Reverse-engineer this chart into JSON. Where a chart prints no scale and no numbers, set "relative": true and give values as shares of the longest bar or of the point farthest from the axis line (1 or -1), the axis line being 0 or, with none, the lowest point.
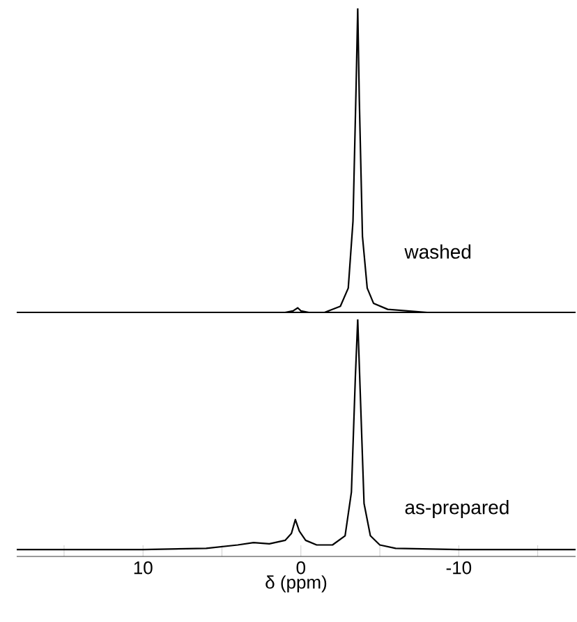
{
  "chart_data": [
    {
      "type": "line",
      "relative": true,
      "tick_labels": false,
      "xlim": [
        18,
        -17.4
      ],
      "series": [
        {
          "name": "washed",
          "color": "#000000",
          "x": [
            18,
            10,
            5,
            2,
            1,
            0.5,
            0.2,
            0,
            -0.5,
            -1.5,
            -2.5,
            -3,
            -3.3,
            -3.5,
            -3.6,
            -3.7,
            -3.9,
            -4.2,
            -4.6,
            -5.5,
            -8,
            -12,
            -17.4
          ],
          "values": [
            0,
            0,
            0,
            0,
            0,
            0.005,
            0.015,
            0.005,
            0,
            0,
            0.02,
            0.08,
            0.3,
            0.75,
            1,
            0.7,
            0.25,
            0.08,
            0.03,
            0.01,
            0,
            0,
            0
          ]
        }
      ]
    },
    {
      "type": "line",
      "relative": true,
      "tick_labels": "x",
      "xlim": [
        18,
        -17.4
      ],
      "xlabel": "δ (ppm)",
      "xticks": [
        {
          "value": 15,
          "label": null
        },
        10,
        {
          "value": 5,
          "label": null
        },
        0,
        {
          "value": -5,
          "label": null
        },
        -10,
        {
          "value": -15,
          "label": null
        }
      ],
      "series": [
        {
          "name": "as-prepared",
          "color": "#000000",
          "x": [
            18,
            10,
            6,
            4,
            3,
            2,
            1,
            0.6,
            0.35,
            0.1,
            -0.3,
            -1,
            -2,
            -2.8,
            -3.2,
            -3.45,
            -3.6,
            -3.75,
            -4,
            -4.4,
            -5,
            -6,
            -10,
            -17.4
          ],
          "values": [
            0,
            0,
            0.005,
            0.02,
            0.03,
            0.025,
            0.04,
            0.07,
            0.13,
            0.08,
            0.04,
            0.02,
            0.02,
            0.06,
            0.25,
            0.75,
            1,
            0.7,
            0.2,
            0.06,
            0.02,
            0.005,
            0,
            0
          ]
        }
      ]
    }
  ]
}
